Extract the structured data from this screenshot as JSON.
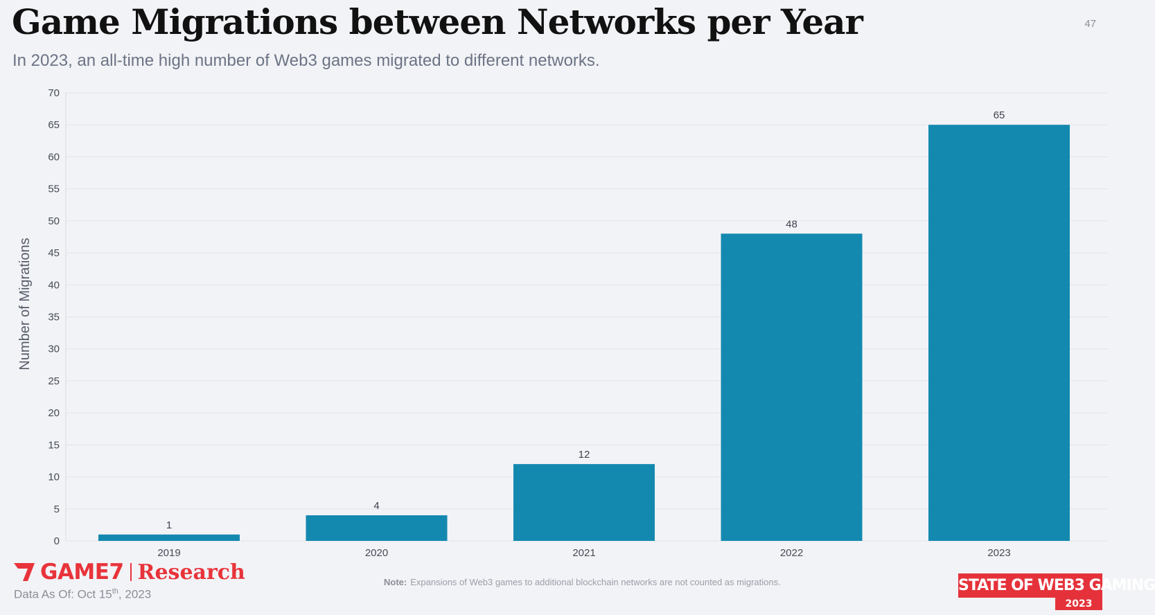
{
  "header": {
    "title": "Game Migrations between Networks per Year",
    "subtitle": "In 2023, an all-time high number of Web3 games migrated to different networks.",
    "page_number": "47"
  },
  "chart_data": {
    "type": "bar",
    "categories": [
      "2019",
      "2020",
      "2021",
      "2022",
      "2023"
    ],
    "values": [
      1,
      4,
      12,
      48,
      65
    ],
    "ylabel": "Number of Migrations",
    "xlabel": "",
    "ylim": [
      0,
      70
    ],
    "yticks": [
      0,
      5,
      10,
      15,
      20,
      25,
      30,
      35,
      40,
      45,
      50,
      55,
      60,
      65,
      70
    ],
    "data_labels": [
      "1",
      "4",
      "12",
      "48",
      "65"
    ],
    "grid": true,
    "legend": "none",
    "bar_color": "#1489b0"
  },
  "footer": {
    "brand": "GAME7",
    "brand_suffix": "Research",
    "data_as_of_prefix": "Data As Of: Oct 15",
    "data_as_of_sup": "th",
    "data_as_of_suffix": ", 2023",
    "note_label": "Note:",
    "note_text": "Expansions of Web3 games to additional blockchain networks are not counted as migrations.",
    "badge_text": "STATE OF WEB3 GAMING",
    "badge_year": "2023"
  },
  "colors": {
    "accent_red": "#e5323a",
    "bar": "#1489b0",
    "background": "#f2f3f6"
  }
}
